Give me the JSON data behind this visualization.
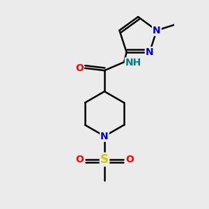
{
  "bg_color": "#ebebeb",
  "bond_color": "#000000",
  "bond_width": 1.8,
  "atom_colors": {
    "N": "#0000cc",
    "O": "#ff0000",
    "S": "#cccc00",
    "C": "#000000",
    "H": "#008080"
  },
  "font_size": 10,
  "fig_size": [
    3.0,
    3.0
  ],
  "dpi": 100,
  "xlim": [
    -1.5,
    1.5
  ],
  "ylim": [
    -2.2,
    2.2
  ]
}
